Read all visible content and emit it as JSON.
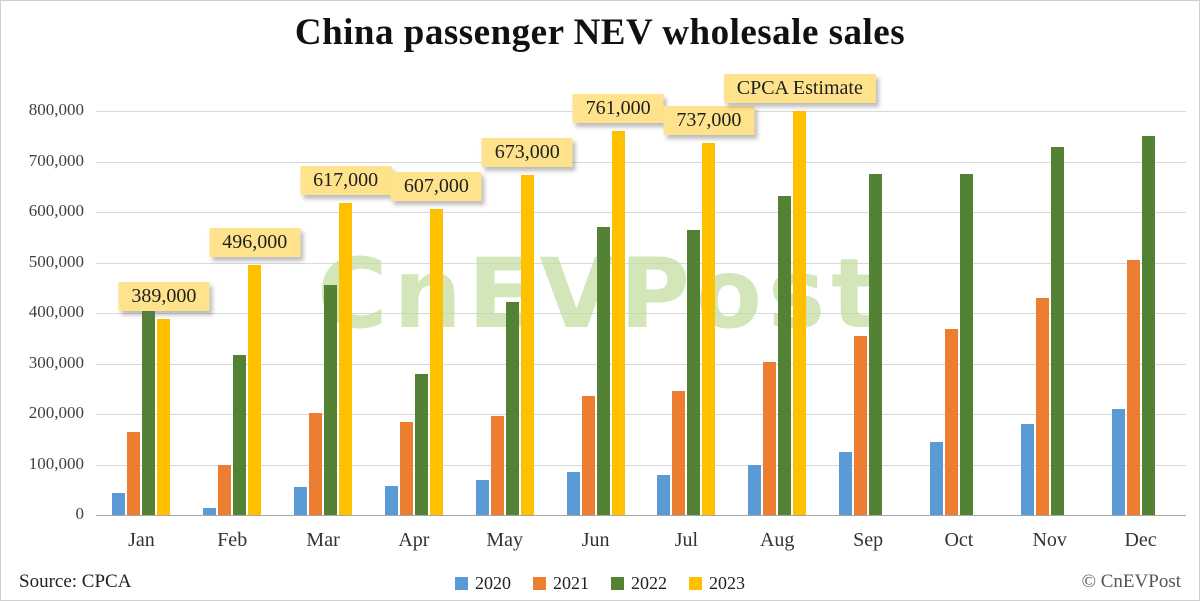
{
  "title": "China passenger NEV wholesale sales",
  "watermark": "CnEVPost",
  "footer": {
    "source": "Source: CPCA",
    "copyright": "© CnEVPost"
  },
  "colors": {
    "grid": "#D9D9D9",
    "axis": "#A6A6A6",
    "callout_bg": "#FFE38C",
    "watermark_green": "#C1DDA0"
  },
  "chart_data": {
    "type": "bar",
    "title": "China passenger NEV wholesale sales",
    "xlabel": "",
    "ylabel": "",
    "ylim": [
      0,
      800000
    ],
    "ytick_step": 100000,
    "ytick_labels": [
      "0",
      "100,000",
      "200,000",
      "300,000",
      "400,000",
      "500,000",
      "600,000",
      "700,000",
      "800,000"
    ],
    "grid": "horizontal",
    "legend_position": "bottom",
    "categories": [
      "Jan",
      "Feb",
      "Mar",
      "Apr",
      "May",
      "Jun",
      "Jul",
      "Aug",
      "Sep",
      "Oct",
      "Nov",
      "Dec"
    ],
    "series": [
      {
        "name": "2020",
        "color": "#5B9BD5",
        "values": [
          43000,
          14000,
          56000,
          58000,
          70000,
          85000,
          80000,
          100000,
          125000,
          144000,
          181000,
          210000
        ]
      },
      {
        "name": "2021",
        "color": "#ED7D31",
        "values": [
          165000,
          100000,
          202000,
          184000,
          197000,
          235000,
          246000,
          304000,
          355000,
          368000,
          429000,
          505000
        ]
      },
      {
        "name": "2022",
        "color": "#548235",
        "values": [
          405000,
          317000,
          455000,
          280000,
          421000,
          571000,
          564000,
          631000,
          675000,
          676000,
          728000,
          750000
        ]
      },
      {
        "name": "2023",
        "color": "#FFC000",
        "values": [
          389000,
          496000,
          617000,
          607000,
          673000,
          761000,
          737000,
          800000,
          null,
          null,
          null,
          null
        ]
      }
    ],
    "annotations": [
      {
        "month": 0,
        "text": "389,000"
      },
      {
        "month": 1,
        "text": "496,000"
      },
      {
        "month": 2,
        "text": "617,000"
      },
      {
        "month": 3,
        "text": "607,000"
      },
      {
        "month": 4,
        "text": "673,000"
      },
      {
        "month": 5,
        "text": "761,000"
      },
      {
        "month": 6,
        "text": "737,000"
      },
      {
        "month": 7,
        "text": "CPCA Estimate"
      }
    ]
  }
}
